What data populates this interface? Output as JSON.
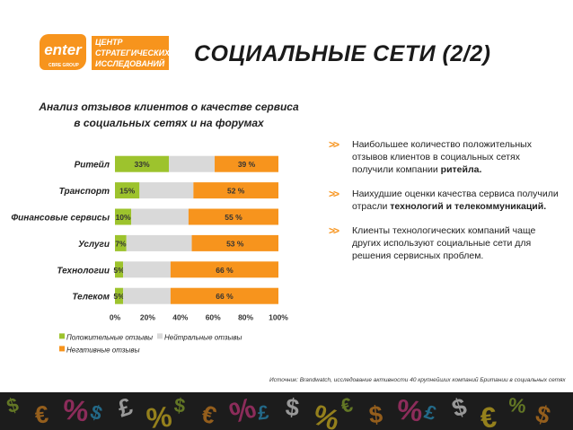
{
  "logo": {
    "word": "enter",
    "sub": "CBRE GROUP",
    "tag": [
      "ЦЕНТР",
      "СТРАТЕГИЧЕСКИХ",
      "ИССЛЕДОВАНИЙ"
    ]
  },
  "page_title": "СОЦИАЛЬНЫЕ СЕТИ (2/2)",
  "chart_title_line1": "Анализ отзывов клиентов о качестве сервиса",
  "chart_title_line2": "в социальных сетях и на форумах",
  "colors": {
    "positive": "#9dc32d",
    "neutral": "#d9d9d9",
    "negative": "#f7941d",
    "accent": "#f7941d"
  },
  "chart_data": {
    "type": "bar",
    "orientation": "horizontal",
    "stacked": true,
    "percent_stacked": true,
    "categories": [
      "Ритейл",
      "Транспорт",
      "Финансовые сервисы",
      "Услуги",
      "Технологии",
      "Телеком"
    ],
    "series": [
      {
        "name": "Положительные отзывы",
        "values": [
          33,
          15,
          10,
          7,
          5,
          5
        ],
        "labels": [
          "33%",
          "15%",
          "10%",
          "7%",
          "5%",
          "5%"
        ]
      },
      {
        "name": "Нейтральные отзывы",
        "values": [
          28,
          33,
          35,
          40,
          29,
          29
        ],
        "labels": [
          "",
          "",
          "",
          "",
          "",
          ""
        ]
      },
      {
        "name": "Негативные отзывы",
        "values": [
          39,
          52,
          55,
          53,
          66,
          66
        ],
        "labels": [
          "39 %",
          "52 %",
          "55 %",
          "53 %",
          "66 %",
          "66 %"
        ]
      }
    ],
    "xticks": [
      "0%",
      "20%",
      "40%",
      "60%",
      "80%",
      "100%"
    ],
    "xlim": [
      0,
      100
    ],
    "legend": "bottom-left"
  },
  "bullets": [
    {
      "text": "Наибольшее количество положительных отзывов клиентов в социальных сетях получили компании ",
      "bold": "ритейла."
    },
    {
      "text": "Наихудшие оценки качества сервиса получили отрасли ",
      "bold": "технологий и телекоммуникаций."
    },
    {
      "text": "Клиенты технологических компаний чаще других используют социальные сети для решения сервисных проблем.",
      "bold": ""
    }
  ],
  "source": "Источник: Brandwatch, исследование активности 40 крупнейших компаний Британии в социальных сетях",
  "footer_symbols": [
    "$",
    "€",
    "%",
    "$",
    "£",
    "%",
    "$",
    "€",
    "%",
    "£",
    "$",
    "%",
    "€",
    "$",
    "%",
    "£",
    "$",
    "€",
    "%",
    "$"
  ]
}
